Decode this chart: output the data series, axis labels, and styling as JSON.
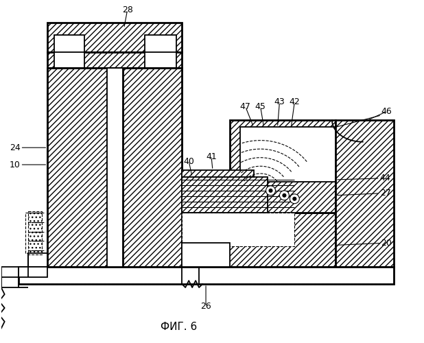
{
  "bg_color": "#ffffff",
  "title": "ФИГ. 6",
  "title_fontsize": 11,
  "hatch": "////",
  "lw_thick": 2.0,
  "lw_med": 1.3,
  "lw_thin": 0.8
}
